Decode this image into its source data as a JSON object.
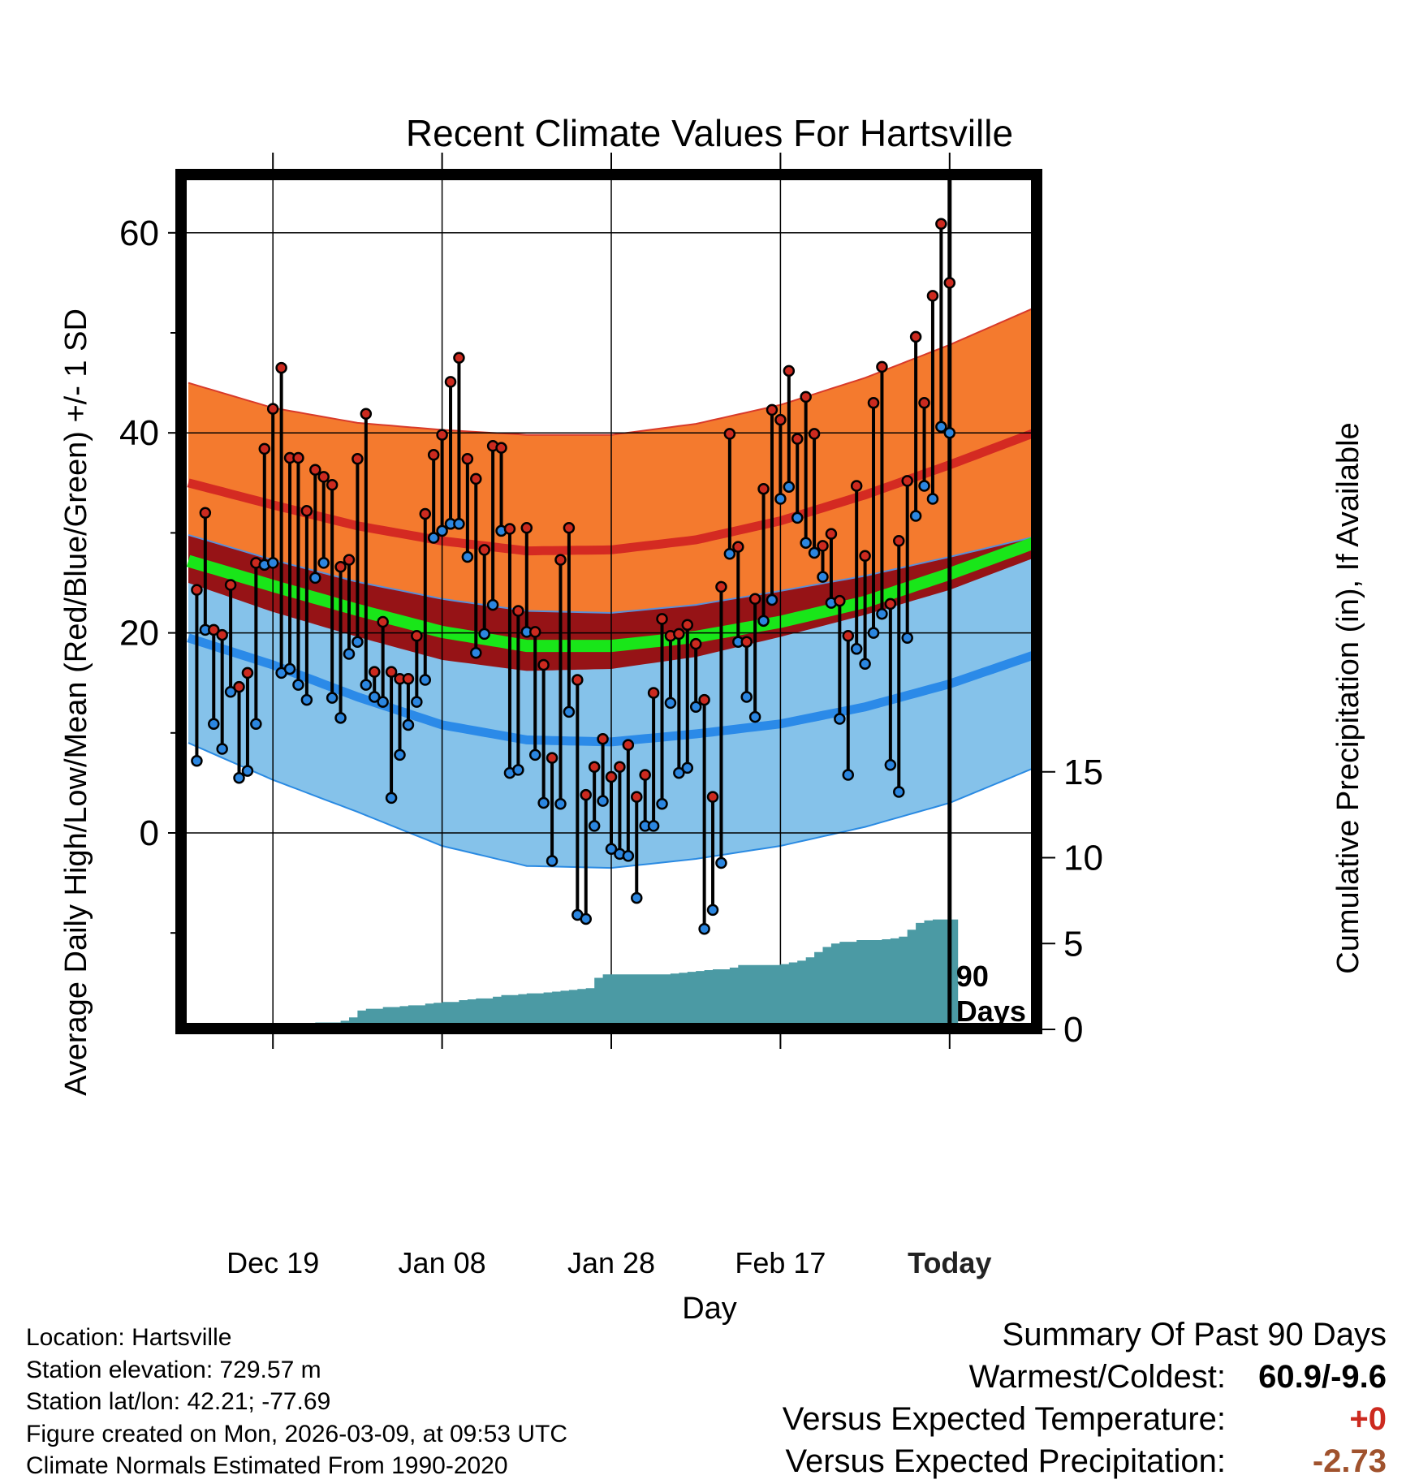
{
  "chart_data": {
    "type": "line",
    "title": "Recent Climate Values For Hartsville",
    "xlabel": "Day",
    "ylabel": "Average Daily High/Low/Mean (Red/Blue/Green) +/- 1 SD",
    "y2label": "Cumulative Precipitation (in), If Available",
    "ylim": [
      -19,
      66
    ],
    "y_ticks": [
      0,
      20,
      40,
      60
    ],
    "y_minor_ticks": [
      -10,
      10,
      30,
      50
    ],
    "y2lim": [
      0,
      50
    ],
    "y2_ticks": [
      0,
      5,
      10,
      15
    ],
    "x_range_days": [
      -90,
      10
    ],
    "x_ticks": [
      {
        "day": -80,
        "label": "Dec 19"
      },
      {
        "day": -60,
        "label": "Jan 08"
      },
      {
        "day": -40,
        "label": "Jan 28"
      },
      {
        "day": -20,
        "label": "Feb 17"
      },
      {
        "day": 0,
        "label": "Today"
      }
    ],
    "today_marker": {
      "day": 0,
      "label_line1": "90",
      "label_line2": "Days"
    },
    "normals": {
      "days": [
        -90,
        -80,
        -70,
        -60,
        -50,
        -40,
        -30,
        -20,
        -10,
        0,
        10
      ],
      "high_mean": [
        35,
        32.8,
        30.7,
        29.2,
        28.2,
        28.3,
        29.3,
        31.2,
        33.8,
        36.8,
        40.0
      ],
      "high_sd_upper": [
        45,
        42.5,
        41.0,
        40.3,
        39.8,
        39.8,
        40.9,
        42.8,
        45.5,
        48.8,
        52.5
      ],
      "low_mean": [
        19.5,
        16.8,
        13.6,
        10.8,
        9.3,
        9.1,
        9.9,
        10.9,
        12.6,
        14.9,
        17.8
      ],
      "low_sd_lower": [
        9,
        5.3,
        2.1,
        -1.3,
        -3.3,
        -3.5,
        -2.6,
        -1.3,
        0.6,
        3.0,
        6.5
      ],
      "mean": [
        27.2,
        24.7,
        22.3,
        20.1,
        18.7,
        18.7,
        19.6,
        21.1,
        23.1,
        25.9,
        29.0
      ],
      "dark_upper": [
        29.8,
        27.3,
        25.1,
        23.4,
        22.2,
        22.0,
        22.8,
        24.2,
        25.7,
        27.6,
        29.6
      ],
      "dark_lower": [
        25.0,
        22.1,
        19.6,
        17.3,
        16.2,
        16.4,
        17.6,
        19.6,
        21.8,
        24.3,
        27.5
      ]
    },
    "series": [
      {
        "name": "Daily High",
        "color": "#cc2a1f",
        "values": [
          24.3,
          32.0,
          20.3,
          19.8,
          24.8,
          14.6,
          16.0,
          27.0,
          38.4,
          42.4,
          46.5,
          37.5,
          37.5,
          32.2,
          36.3,
          35.6,
          34.8,
          26.6,
          27.3,
          37.4,
          41.9,
          16.1,
          21.1,
          16.1,
          15.4,
          15.4,
          19.7,
          31.9,
          37.8,
          39.8,
          45.1,
          47.5,
          37.4,
          35.4,
          28.3,
          38.7,
          38.5,
          30.4,
          22.2,
          30.5,
          20.1,
          16.8,
          7.5,
          27.3,
          30.5,
          15.3,
          3.8,
          6.6,
          9.4,
          5.6,
          6.6,
          8.8,
          3.6,
          5.8,
          14.0,
          21.4,
          19.7,
          19.9,
          20.8,
          18.9,
          13.3,
          3.6,
          24.6,
          39.9,
          28.6,
          19.1,
          23.4,
          34.4,
          42.3,
          41.3,
          46.2,
          39.4,
          43.6,
          39.9,
          28.7,
          29.9,
          23.2,
          19.7,
          34.7,
          27.7,
          43.0,
          46.6,
          22.9,
          29.2,
          35.2,
          49.6,
          43.0,
          53.7,
          60.9,
          55.0
        ]
      },
      {
        "name": "Daily Low",
        "color": "#2b86e0",
        "values": [
          7.2,
          20.3,
          10.9,
          8.4,
          14.1,
          5.5,
          6.2,
          10.9,
          26.8,
          27.0,
          16.0,
          16.4,
          14.8,
          13.3,
          25.5,
          27.0,
          13.5,
          11.5,
          17.9,
          19.1,
          14.8,
          13.6,
          13.1,
          3.5,
          7.8,
          10.8,
          13.1,
          15.3,
          29.5,
          30.2,
          30.9,
          30.9,
          27.6,
          18.0,
          19.9,
          22.8,
          30.2,
          6.0,
          6.3,
          20.1,
          7.8,
          3.0,
          -2.8,
          2.9,
          12.1,
          -8.2,
          -8.6,
          0.7,
          3.2,
          -1.6,
          -2.1,
          -2.3,
          -6.5,
          0.7,
          0.7,
          2.9,
          13.0,
          6.0,
          6.5,
          12.6,
          -9.6,
          -7.7,
          -3.0,
          27.9,
          19.1,
          13.6,
          11.6,
          21.2,
          23.3,
          33.4,
          34.6,
          31.5,
          29.0,
          28.0,
          25.6,
          23.0,
          11.4,
          5.8,
          18.4,
          16.9,
          20.0,
          21.9,
          6.8,
          4.1,
          19.5,
          31.7,
          34.7,
          33.4,
          40.6,
          40.0
        ]
      },
      {
        "name": "Cumulative Precipitation",
        "color": "#4b9aa4",
        "values": [
          0,
          0,
          0,
          0,
          0,
          0,
          0,
          0,
          0,
          0,
          0.2,
          0.2,
          0.2,
          0.2,
          0.3,
          0.4,
          0.4,
          0.4,
          0.5,
          0.7,
          1.1,
          1.2,
          1.2,
          1.3,
          1.3,
          1.35,
          1.4,
          1.4,
          1.5,
          1.55,
          1.6,
          1.6,
          1.7,
          1.75,
          1.8,
          1.8,
          1.9,
          2.0,
          2.0,
          2.05,
          2.1,
          2.1,
          2.15,
          2.2,
          2.25,
          2.3,
          2.35,
          2.4,
          3.0,
          3.2,
          3.2,
          3.2,
          3.2,
          3.2,
          3.2,
          3.2,
          3.2,
          3.25,
          3.3,
          3.35,
          3.4,
          3.45,
          3.5,
          3.5,
          3.6,
          3.75,
          3.75,
          3.75,
          3.75,
          3.75,
          3.8,
          3.9,
          4.0,
          4.2,
          4.5,
          4.8,
          5.0,
          5.1,
          5.1,
          5.2,
          5.2,
          5.2,
          5.25,
          5.3,
          5.4,
          5.8,
          6.2,
          6.35,
          6.4,
          6.4
        ]
      }
    ],
    "precip_last_day": 1
  },
  "footer": {
    "location": "Location: Hartsville",
    "elevation": "Station elevation: 729.57 m",
    "latlon": "Station lat/lon: 42.21; -77.69",
    "created": "Figure created on Mon, 2026-03-09, at 09:53 UTC",
    "normals": "Climate Normals Estimated From 1990-2020"
  },
  "summary": {
    "title": "Summary Of Past 90 Days",
    "warm_cold_label": "Warmest/Coldest:",
    "warm_cold_value": "60.9/-9.6",
    "temp_label": "Versus Expected Temperature:",
    "temp_value": "+0",
    "temp_color": "#cc2a1f",
    "precip_label": "Versus Expected Precipitation:",
    "precip_value": "-2.73",
    "precip_color": "#a0522d"
  }
}
